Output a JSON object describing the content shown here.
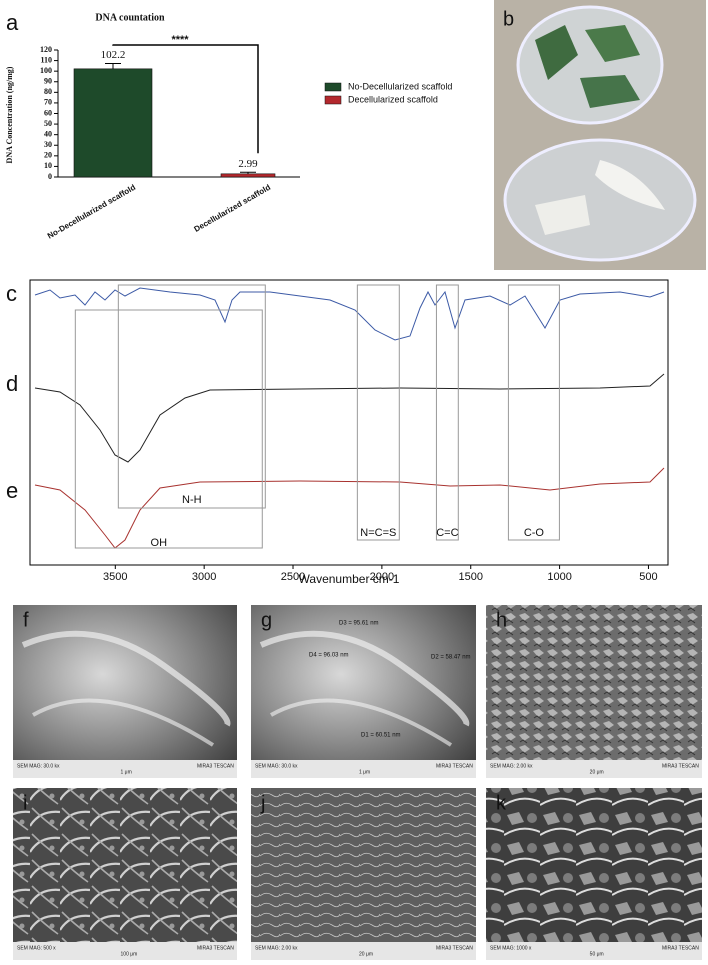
{
  "chart_data": [
    {
      "type": "bar",
      "panel_label": "a",
      "title": "DNA countation",
      "y_label": "DNA Concentration (ng/mg)",
      "categories": [
        "No-Decellularized scaffold",
        "Decellularized scaffold"
      ],
      "series": [
        {
          "name": "No-Decellularized scaffold",
          "color": "#1e4a2a",
          "values": [
            102.2,
            null
          ],
          "errors": [
            5,
            null
          ]
        },
        {
          "name": "Decellularized scaffold",
          "color": "#b3282d",
          "values": [
            null,
            2.99
          ],
          "errors": [
            null,
            1.5
          ]
        }
      ],
      "significance": "****",
      "ylim": [
        0,
        120
      ],
      "yticks": [
        0,
        10,
        20,
        30,
        40,
        50,
        60,
        70,
        80,
        90,
        100,
        110,
        120
      ]
    },
    {
      "type": "spectrum",
      "x_label": "Wavenumber cm-1",
      "xlim": [
        3980,
        390
      ],
      "xticks": [
        3500,
        3000,
        2500,
        2000,
        1500,
        1000,
        500
      ],
      "traces": [
        {
          "name": "c",
          "color": "#3c5aa6"
        },
        {
          "name": "d",
          "color": "#222222"
        },
        {
          "name": "e",
          "color": "#a8322f"
        }
      ],
      "bands": [
        {
          "label": "OH",
          "range": [
            3725,
            2673
          ]
        },
        {
          "label": "N-H",
          "range": [
            3483,
            2656
          ]
        },
        {
          "label": "N=C=S",
          "range": [
            2138,
            1902
          ]
        },
        {
          "label": "C=C",
          "range": [
            1693,
            1570
          ]
        },
        {
          "label": "C-O",
          "range": [
            1288,
            1001
          ]
        }
      ]
    }
  ],
  "photo": {
    "label": "b"
  },
  "sem": {
    "brand": "MIRA3 TESCAN",
    "panels": [
      {
        "label": "f",
        "mag": "SEM MAG: 30.0 kx",
        "scale": "1 μm"
      },
      {
        "label": "g",
        "mag": "SEM MAG: 30.0 kx",
        "scale": "1 μm",
        "measurements": [
          "D3 = 95.61 nm",
          "D4 = 96.03 nm",
          "D2 = 58.47 nm",
          "D1 = 60.51 nm"
        ]
      },
      {
        "label": "h",
        "mag": "SEM MAG: 2.00 kx",
        "scale": "20 μm"
      },
      {
        "label": "i",
        "mag": "SEM MAG: 500 x",
        "scale": "100 μm"
      },
      {
        "label": "j",
        "mag": "SEM MAG: 2.00 kx",
        "scale": "20 μm"
      },
      {
        "label": "k",
        "mag": "SEM MAG: 1000 x",
        "scale": "50 μm"
      }
    ]
  }
}
